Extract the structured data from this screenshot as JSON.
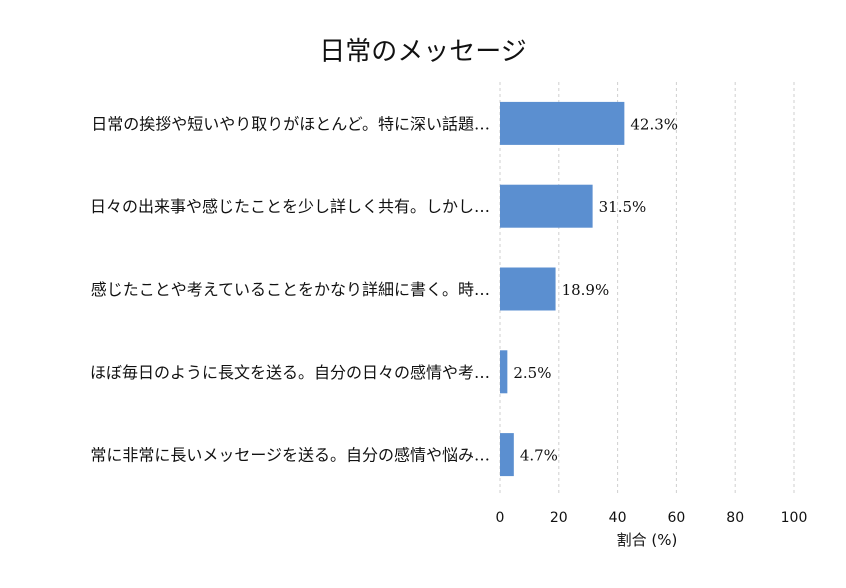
{
  "chart_data": {
    "type": "bar",
    "orientation": "horizontal",
    "title": "日常のメッセージ",
    "xlabel": "割合 (%)",
    "ylabel": "",
    "xlim": [
      0,
      100
    ],
    "xticks": [
      0,
      20,
      40,
      60,
      80,
      100
    ],
    "grid": true,
    "categories": [
      "日常の挨拶や短いやり取りがほとんど。特に深い話題…",
      "日々の出来事や感じたことを少し詳しく共有。しかし…",
      "感じたことや考えていることをかなり詳細に書く。時…",
      "ほぼ毎日のように長文を送る。自分の日々の感情や考…",
      "常に非常に長いメッセージを送る。自分の感情や悩み…"
    ],
    "values": [
      42.3,
      31.5,
      18.9,
      2.5,
      4.7
    ],
    "value_labels": [
      "42.3%",
      "31.5%",
      "18.9%",
      "2.5%",
      "4.7%"
    ],
    "bar_color": "#5b8fd0"
  }
}
